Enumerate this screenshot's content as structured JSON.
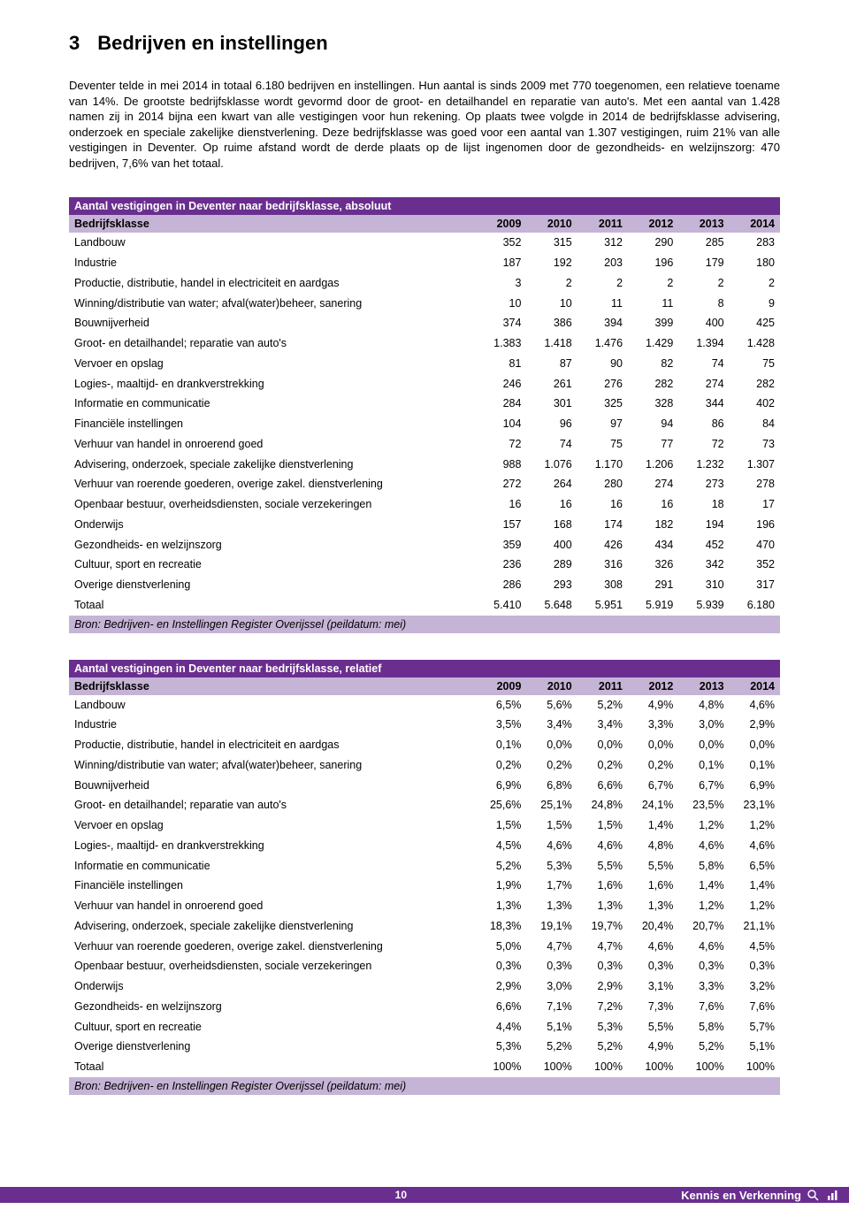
{
  "colors": {
    "purple": "#6a2e8f",
    "lavender": "#c5b4d6",
    "white": "#ffffff",
    "text": "#000000"
  },
  "heading": {
    "number": "3",
    "title": "Bedrijven en instellingen"
  },
  "intro": "Deventer telde in mei 2014 in totaal 6.180 bedrijven en instellingen. Hun aantal is sinds 2009 met 770 toegenomen, een relatieve toename van 14%. De grootste bedrijfsklasse wordt gevormd door de groot- en detailhandel en reparatie van auto's. Met een aantal van 1.428 namen zij in 2014 bijna een kwart van alle vestigingen voor hun rekening. Op plaats twee volgde in 2014 de bedrijfsklasse advisering, onderzoek en speciale zakelijke dienstverlening. Deze bedrijfsklasse was goed voor een aantal van 1.307 vestigingen, ruim 21% van alle vestigingen in Deventer. Op ruime afstand wordt de derde plaats op de lijst ingenomen door de gezondheids- en welzijnszorg: 470 bedrijven, 7,6% van het totaal.",
  "years": [
    "2009",
    "2010",
    "2011",
    "2012",
    "2013",
    "2014"
  ],
  "categoryHeader": "Bedrijfsklasse",
  "table1": {
    "title": "Aantal vestigingen in Deventer naar bedrijfsklasse, absoluut",
    "rows": [
      {
        "label": "Landbouw",
        "v": [
          "352",
          "315",
          "312",
          "290",
          "285",
          "283"
        ]
      },
      {
        "label": "Industrie",
        "v": [
          "187",
          "192",
          "203",
          "196",
          "179",
          "180"
        ]
      },
      {
        "label": "Productie, distributie, handel in electriciteit en aardgas",
        "v": [
          "3",
          "2",
          "2",
          "2",
          "2",
          "2"
        ]
      },
      {
        "label": "Winning/distributie van water; afval(water)beheer, sanering",
        "v": [
          "10",
          "10",
          "11",
          "11",
          "8",
          "9"
        ]
      },
      {
        "label": "Bouwnijverheid",
        "v": [
          "374",
          "386",
          "394",
          "399",
          "400",
          "425"
        ]
      },
      {
        "label": "Groot- en detailhandel; reparatie van auto's",
        "v": [
          "1.383",
          "1.418",
          "1.476",
          "1.429",
          "1.394",
          "1.428"
        ]
      },
      {
        "label": "Vervoer en opslag",
        "v": [
          "81",
          "87",
          "90",
          "82",
          "74",
          "75"
        ]
      },
      {
        "label": "Logies-, maaltijd- en drankverstrekking",
        "v": [
          "246",
          "261",
          "276",
          "282",
          "274",
          "282"
        ]
      },
      {
        "label": "Informatie en communicatie",
        "v": [
          "284",
          "301",
          "325",
          "328",
          "344",
          "402"
        ]
      },
      {
        "label": "Financiële instellingen",
        "v": [
          "104",
          "96",
          "97",
          "94",
          "86",
          "84"
        ]
      },
      {
        "label": "Verhuur van handel in onroerend goed",
        "v": [
          "72",
          "74",
          "75",
          "77",
          "72",
          "73"
        ]
      },
      {
        "label": "Advisering, onderzoek, speciale zakelijke dienstverlening",
        "v": [
          "988",
          "1.076",
          "1.170",
          "1.206",
          "1.232",
          "1.307"
        ]
      },
      {
        "label": "Verhuur van roerende goederen, overige zakel. dienstverlening",
        "v": [
          "272",
          "264",
          "280",
          "274",
          "273",
          "278"
        ]
      },
      {
        "label": "Openbaar bestuur, overheidsdiensten, sociale verzekeringen",
        "v": [
          "16",
          "16",
          "16",
          "16",
          "18",
          "17"
        ]
      },
      {
        "label": "Onderwijs",
        "v": [
          "157",
          "168",
          "174",
          "182",
          "194",
          "196"
        ]
      },
      {
        "label": "Gezondheids- en welzijnszorg",
        "v": [
          "359",
          "400",
          "426",
          "434",
          "452",
          "470"
        ]
      },
      {
        "label": "Cultuur, sport en recreatie",
        "v": [
          "236",
          "289",
          "316",
          "326",
          "342",
          "352"
        ]
      },
      {
        "label": "Overige dienstverlening",
        "v": [
          "286",
          "293",
          "308",
          "291",
          "310",
          "317"
        ]
      },
      {
        "label": "Totaal",
        "v": [
          "5.410",
          "5.648",
          "5.951",
          "5.919",
          "5.939",
          "6.180"
        ]
      }
    ],
    "source": "Bron: Bedrijven- en Instellingen Register Overijssel (peildatum: mei)"
  },
  "table2": {
    "title": "Aantal vestigingen in Deventer naar bedrijfsklasse, relatief",
    "rows": [
      {
        "label": "Landbouw",
        "v": [
          "6,5%",
          "5,6%",
          "5,2%",
          "4,9%",
          "4,8%",
          "4,6%"
        ]
      },
      {
        "label": "Industrie",
        "v": [
          "3,5%",
          "3,4%",
          "3,4%",
          "3,3%",
          "3,0%",
          "2,9%"
        ]
      },
      {
        "label": "Productie, distributie, handel in electriciteit en aardgas",
        "v": [
          "0,1%",
          "0,0%",
          "0,0%",
          "0,0%",
          "0,0%",
          "0,0%"
        ]
      },
      {
        "label": "Winning/distributie van water; afval(water)beheer, sanering",
        "v": [
          "0,2%",
          "0,2%",
          "0,2%",
          "0,2%",
          "0,1%",
          "0,1%"
        ]
      },
      {
        "label": "Bouwnijverheid",
        "v": [
          "6,9%",
          "6,8%",
          "6,6%",
          "6,7%",
          "6,7%",
          "6,9%"
        ]
      },
      {
        "label": "Groot- en detailhandel; reparatie van auto's",
        "v": [
          "25,6%",
          "25,1%",
          "24,8%",
          "24,1%",
          "23,5%",
          "23,1%"
        ]
      },
      {
        "label": "Vervoer en opslag",
        "v": [
          "1,5%",
          "1,5%",
          "1,5%",
          "1,4%",
          "1,2%",
          "1,2%"
        ]
      },
      {
        "label": "Logies-, maaltijd- en drankverstrekking",
        "v": [
          "4,5%",
          "4,6%",
          "4,6%",
          "4,8%",
          "4,6%",
          "4,6%"
        ]
      },
      {
        "label": "Informatie en communicatie",
        "v": [
          "5,2%",
          "5,3%",
          "5,5%",
          "5,5%",
          "5,8%",
          "6,5%"
        ]
      },
      {
        "label": "Financiële instellingen",
        "v": [
          "1,9%",
          "1,7%",
          "1,6%",
          "1,6%",
          "1,4%",
          "1,4%"
        ]
      },
      {
        "label": "Verhuur van handel in onroerend goed",
        "v": [
          "1,3%",
          "1,3%",
          "1,3%",
          "1,3%",
          "1,2%",
          "1,2%"
        ]
      },
      {
        "label": "Advisering, onderzoek, speciale zakelijke dienstverlening",
        "v": [
          "18,3%",
          "19,1%",
          "19,7%",
          "20,4%",
          "20,7%",
          "21,1%"
        ]
      },
      {
        "label": "Verhuur van roerende goederen, overige zakel. dienstverlening",
        "v": [
          "5,0%",
          "4,7%",
          "4,7%",
          "4,6%",
          "4,6%",
          "4,5%"
        ]
      },
      {
        "label": "Openbaar bestuur, overheidsdiensten, sociale verzekeringen",
        "v": [
          "0,3%",
          "0,3%",
          "0,3%",
          "0,3%",
          "0,3%",
          "0,3%"
        ]
      },
      {
        "label": "Onderwijs",
        "v": [
          "2,9%",
          "3,0%",
          "2,9%",
          "3,1%",
          "3,3%",
          "3,2%"
        ]
      },
      {
        "label": "Gezondheids- en welzijnszorg",
        "v": [
          "6,6%",
          "7,1%",
          "7,2%",
          "7,3%",
          "7,6%",
          "7,6%"
        ]
      },
      {
        "label": "Cultuur, sport en recreatie",
        "v": [
          "4,4%",
          "5,1%",
          "5,3%",
          "5,5%",
          "5,8%",
          "5,7%"
        ]
      },
      {
        "label": "Overige dienstverlening",
        "v": [
          "5,3%",
          "5,2%",
          "5,2%",
          "4,9%",
          "5,2%",
          "5,1%"
        ]
      },
      {
        "label": "Totaal",
        "v": [
          "100%",
          "100%",
          "100%",
          "100%",
          "100%",
          "100%"
        ]
      }
    ],
    "source": "Bron: Bedrijven- en Instellingen Register Overijssel (peildatum: mei)"
  },
  "footer": {
    "pageNumber": "10",
    "brand": "Kennis en Verkenning"
  }
}
